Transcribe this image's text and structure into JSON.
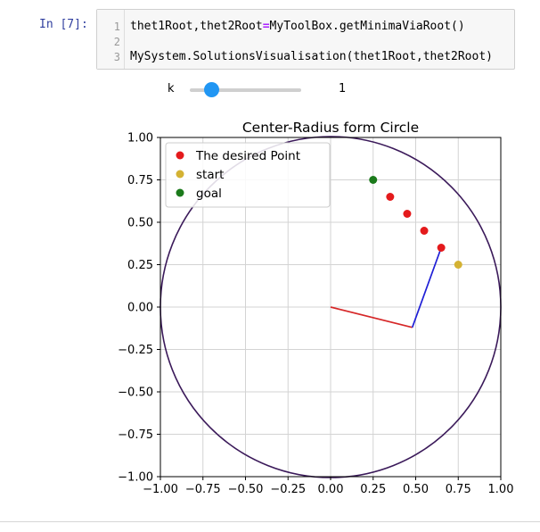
{
  "cell": {
    "prompt": "In [7]:",
    "lines": [
      {
        "n": "1",
        "a": "thet1Root,thet2Root",
        "op": "=",
        "b": "MyToolBox.getMinimaViaRoot()"
      },
      {
        "n": "2",
        "a": "",
        "op": "",
        "b": ""
      },
      {
        "n": "3",
        "a": "MySystem.SolutionsVisualisation(thet1Root,thet2Root)",
        "op": "",
        "b": ""
      }
    ]
  },
  "slider": {
    "label": "k",
    "value": "1"
  },
  "chart_data": {
    "type": "scatter",
    "title": "Center-Radius form Circle",
    "xlabel": "",
    "ylabel": "",
    "xlim": [
      -1.0,
      1.0
    ],
    "ylim": [
      -1.0,
      1.0
    ],
    "xticks": [
      "−1.00",
      "−0.75",
      "−0.50",
      "−0.25",
      "0.00",
      "0.25",
      "0.50",
      "0.75",
      "1.00"
    ],
    "yticks": [
      "−1.00",
      "−0.75",
      "−0.50",
      "−0.25",
      "0.00",
      "0.25",
      "0.50",
      "0.75",
      "1.00"
    ],
    "grid": true,
    "legend_position": "top-left",
    "legend": [
      {
        "name": "The desired Point",
        "color": "#e41a1c"
      },
      {
        "name": "start",
        "color": "#d4b233"
      },
      {
        "name": "goal",
        "color": "#1b7a1b"
      }
    ],
    "circle": {
      "cx": 0,
      "cy": 0,
      "r": 1,
      "color": "#3b1a5a"
    },
    "desired_points": {
      "color": "#e41a1c",
      "points": [
        [
          0.35,
          0.65
        ],
        [
          0.45,
          0.55
        ],
        [
          0.55,
          0.45
        ],
        [
          0.65,
          0.35
        ]
      ]
    },
    "start": {
      "color": "#d4b233",
      "point": [
        0.75,
        0.25
      ]
    },
    "goal": {
      "color": "#1b7a1b",
      "point": [
        0.25,
        0.75
      ]
    },
    "links": [
      {
        "color": "#d62728",
        "from": [
          0.0,
          0.0
        ],
        "to": [
          0.48,
          -0.12
        ]
      },
      {
        "color": "#1f1fd6",
        "from": [
          0.48,
          -0.12
        ],
        "to": [
          0.65,
          0.35
        ]
      }
    ]
  }
}
